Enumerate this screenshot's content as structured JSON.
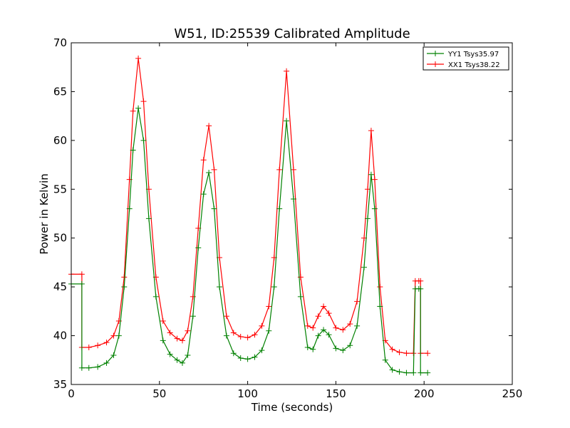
{
  "chart_data": {
    "type": "line",
    "title": "W51, ID:25539 Calibrated Amplitude",
    "xlabel": "Time (seconds)",
    "ylabel": "Power in Kelvin",
    "xlim": [
      0,
      250
    ],
    "ylim": [
      35,
      70
    ],
    "xticks": [
      0,
      50,
      100,
      150,
      200,
      250
    ],
    "yticks": [
      35,
      40,
      45,
      50,
      55,
      60,
      65,
      70
    ],
    "grid": false,
    "legend": "top-right",
    "series": [
      {
        "name": "YY1 Tsys35.97",
        "color": "#008000",
        "marker": "+",
        "x": [
          0,
          6,
          6,
          10,
          15,
          20,
          24,
          27,
          30,
          33,
          35,
          38,
          41,
          44,
          48,
          52,
          56,
          60,
          63,
          66,
          69,
          72,
          75,
          78,
          81,
          84,
          88,
          92,
          96,
          100,
          104,
          108,
          112,
          115,
          118,
          122,
          126,
          130,
          134,
          137,
          140,
          143,
          146,
          150,
          154,
          158,
          162,
          166,
          168,
          170,
          172,
          175,
          178,
          182,
          186,
          190,
          194,
          195,
          197,
          198,
          198,
          202
        ],
        "y": [
          45.3,
          45.3,
          36.7,
          36.7,
          36.8,
          37.2,
          38.0,
          40.0,
          45.0,
          53.0,
          59.0,
          63.3,
          60.0,
          52.0,
          44.0,
          39.5,
          38.1,
          37.5,
          37.2,
          38.0,
          42.0,
          49.0,
          54.5,
          56.7,
          53.0,
          45.0,
          40.0,
          38.2,
          37.7,
          37.6,
          37.8,
          38.5,
          40.5,
          45.0,
          53.0,
          62.0,
          54.0,
          44.0,
          38.8,
          38.6,
          40.0,
          40.6,
          40.1,
          38.7,
          38.5,
          39.0,
          41.0,
          47.0,
          52.0,
          56.5,
          53.0,
          43.0,
          37.5,
          36.5,
          36.3,
          36.2,
          36.2,
          44.8,
          44.8,
          44.8,
          36.2,
          36.2
        ]
      },
      {
        "name": "XX1 Tsys38.22",
        "color": "#ff0000",
        "marker": "+",
        "x": [
          0,
          6,
          6,
          10,
          15,
          20,
          24,
          27,
          30,
          33,
          35,
          38,
          41,
          44,
          48,
          52,
          56,
          60,
          63,
          66,
          69,
          72,
          75,
          78,
          81,
          84,
          88,
          92,
          96,
          100,
          104,
          108,
          112,
          115,
          118,
          122,
          126,
          130,
          134,
          137,
          140,
          143,
          146,
          150,
          154,
          158,
          162,
          166,
          168,
          170,
          172,
          175,
          178,
          182,
          186,
          190,
          194,
          195,
          197,
          198,
          198,
          202
        ],
        "y": [
          46.3,
          46.3,
          38.8,
          38.8,
          39.0,
          39.3,
          40.0,
          41.5,
          46.0,
          56.0,
          63.0,
          68.4,
          64.0,
          55.0,
          46.0,
          41.5,
          40.3,
          39.7,
          39.5,
          40.5,
          44.0,
          51.0,
          58.0,
          61.5,
          57.0,
          48.0,
          42.0,
          40.3,
          39.9,
          39.8,
          40.1,
          41.0,
          43.0,
          48.0,
          57.0,
          67.1,
          57.0,
          46.0,
          41.0,
          40.8,
          42.0,
          43.0,
          42.3,
          40.8,
          40.6,
          41.2,
          43.5,
          50.0,
          55.0,
          61.0,
          56.0,
          45.0,
          39.5,
          38.6,
          38.3,
          38.2,
          38.2,
          45.6,
          45.6,
          45.6,
          38.2,
          38.2
        ]
      }
    ]
  }
}
